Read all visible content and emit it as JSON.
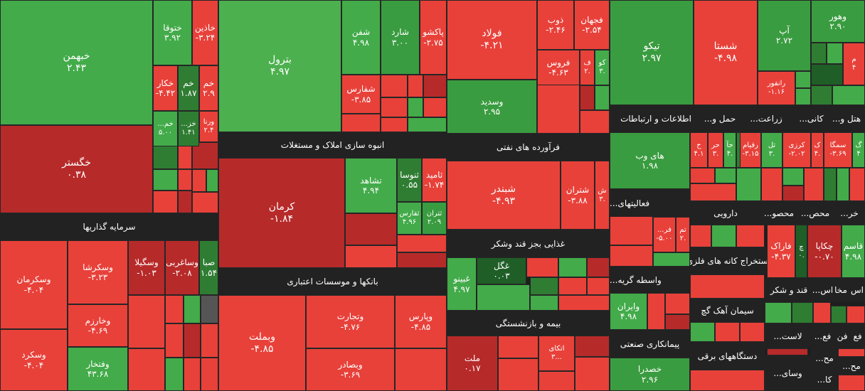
{
  "colors": {
    "red": "#e8413a",
    "red_dark": "#b72a2a",
    "green": "#43ab4a",
    "green_dark": "#2f7d32",
    "green_deep": "#1f5e26",
    "header": "#222222",
    "neutral": "#555555"
  },
  "headers": [
    {
      "label": "سرمایه گذاریها"
    },
    {
      "label": "انبوه سازی املاک و مستغلات"
    },
    {
      "label": "بانکها و موسسات اعتباری"
    },
    {
      "label": "فرآورده های نفتی"
    },
    {
      "label": "غذایی بجز قند وشکر"
    },
    {
      "label": "بیمه و بازنشستگی"
    },
    {
      "label": "اطلاعات و ارتباطات"
    },
    {
      "label": "حمل و..."
    },
    {
      "label": "زراعت..."
    },
    {
      "label": "کانی..."
    },
    {
      "label": "هتل و..."
    },
    {
      "label": "فعالیتهای..."
    },
    {
      "label": "دارویی"
    },
    {
      "label": "محصو..."
    },
    {
      "label": "محص..."
    },
    {
      "label": "خر..."
    },
    {
      "label": "استخراج کانه های فلزی"
    },
    {
      "label": "واسطه گریه..."
    },
    {
      "label": "قند و شکر"
    },
    {
      "label": "اس..."
    },
    {
      "label": "مخا"
    },
    {
      "label": "اس"
    },
    {
      "label": "سیمان آهک گچ"
    },
    {
      "label": "پیمانکاری صنعتی"
    },
    {
      "label": "دستگاههای برقی"
    },
    {
      "label": "لاست..."
    },
    {
      "label": "فع..."
    },
    {
      "label": "فن"
    },
    {
      "label": "فع"
    },
    {
      "label": "مح..."
    },
    {
      "label": "وسای..."
    },
    {
      "label": "کا..."
    },
    {
      "label": "مح..."
    }
  ],
  "tiles": [
    {
      "sym": "خبهمن",
      "chg": "۲.۴۳"
    },
    {
      "sym": "خگستر",
      "chg": "۰.۳۸"
    },
    {
      "sym": "ختوقا",
      "chg": "۳.۹۲"
    },
    {
      "sym": "خاذین",
      "chg": "-۳.۲۴"
    },
    {
      "sym": "خکار",
      "chg": "-۴.۴۲"
    },
    {
      "sym": "خم",
      "chg": "۱.۸۷"
    },
    {
      "sym": "خم",
      "chg": "۲.۹"
    },
    {
      "sym": "خم...",
      "chg": "۵.۰۰"
    },
    {
      "sym": "خز...",
      "chg": "۱.۴۱"
    },
    {
      "sym": "ورنا",
      "chg": "۲.۴"
    },
    {
      "sym": "بترول",
      "chg": "۴.۹۷"
    },
    {
      "sym": "شفن",
      "chg": "۴.۹۸"
    },
    {
      "sym": "شارد",
      "chg": "۳.۰۰"
    },
    {
      "sym": "پاکشو",
      "chg": "-۲.۷۵"
    },
    {
      "sym": "شفارس",
      "chg": "-۳.۸۵"
    },
    {
      "sym": "فولاد",
      "chg": "-۴.۲۱"
    },
    {
      "sym": "ذوب",
      "chg": "-۲.۴۶"
    },
    {
      "sym": "فجهان",
      "chg": "-۲.۵۴"
    },
    {
      "sym": "فروس",
      "chg": "-۴.۶۳"
    },
    {
      "sym": "ف",
      "chg": "۲."
    },
    {
      "sym": "کو",
      "chg": "۳."
    },
    {
      "sym": "وسدید",
      "chg": "۲.۹۵"
    },
    {
      "sym": "تیکو",
      "chg": "۲.۹۷"
    },
    {
      "sym": "شستا",
      "chg": "-۴.۹۸"
    },
    {
      "sym": "آپ",
      "chg": "۲.۷۲"
    },
    {
      "sym": "وهور",
      "chg": "۲.۹۰"
    },
    {
      "sym": "م",
      "chg": "۴"
    },
    {
      "sym": "رانفور",
      "chg": "-۱.۱۶"
    },
    {
      "sym": "کرمان",
      "chg": "-۱.۸۴"
    },
    {
      "sym": "تشاهد",
      "chg": "۴.۹۴"
    },
    {
      "sym": "ثنوسا",
      "chg": "۰.۵۵"
    },
    {
      "sym": "ثامید",
      "chg": "-۱.۷۴"
    },
    {
      "sym": "ثفارس",
      "chg": "۴.۹۶"
    },
    {
      "sym": "ثتران",
      "chg": "۲.۰۹"
    },
    {
      "sym": "شبندر",
      "chg": "-۴.۹۳"
    },
    {
      "sym": "شتران",
      "chg": "-۳.۸۸"
    },
    {
      "sym": "ش",
      "chg": "۳."
    },
    {
      "sym": "های وب",
      "chg": "۱.۹۸"
    },
    {
      "sym": "ح",
      "chg": "۴.۱"
    },
    {
      "sym": "حر",
      "chg": "۳."
    },
    {
      "sym": "حآ",
      "chg": "۴."
    },
    {
      "sym": "رفیام",
      "chg": "-۳.۱۵"
    },
    {
      "sym": "تل",
      "chg": "۳."
    },
    {
      "sym": "کرزی",
      "chg": "-۲.۰۲"
    },
    {
      "sym": "ک",
      "chg": "۴."
    },
    {
      "sym": "سمگا",
      "chg": "-۳.۶۹"
    },
    {
      "sym": "گ",
      "chg": "۴"
    },
    {
      "sym": "وسکرمان",
      "chg": "-۴.۰۴"
    },
    {
      "sym": "وسکرشا",
      "chg": "-۳.۲۳"
    },
    {
      "sym": "وسگیلا",
      "chg": "-۱.۰۳"
    },
    {
      "sym": "وساغربی",
      "chg": "-۲.۰۸"
    },
    {
      "sym": "صبا",
      "chg": "۱.۵۴"
    },
    {
      "sym": "وخارزم",
      "chg": "-۴.۶۹"
    },
    {
      "sym": "وسکرد",
      "chg": "-۴.۰۴"
    },
    {
      "sym": "وفتخار",
      "chg": "۴۳.۶۸"
    },
    {
      "sym": "وبملت",
      "chg": "-۴.۸۵"
    },
    {
      "sym": "وتجارت",
      "chg": "-۴.۷۶"
    },
    {
      "sym": "وپارس",
      "chg": "-۴.۸۵"
    },
    {
      "sym": "وبصادر",
      "chg": "-۳.۶۹"
    },
    {
      "sym": "غبینو",
      "chg": "۴.۹۷"
    },
    {
      "sym": "غگل",
      "chg": "۰.۰۳"
    },
    {
      "sym": "ملت",
      "chg": "۰.۱۷"
    },
    {
      "sym": "اتکای",
      "chg": "۳..."
    },
    {
      "sym": "تم",
      "chg": "۲."
    },
    {
      "sym": "فر...",
      "chg": "-۵.۰۰"
    },
    {
      "sym": "وایران",
      "chg": "۴.۹۸"
    },
    {
      "sym": "خصدرا",
      "chg": "۲.۹۶"
    },
    {
      "sym": "فاراک",
      "chg": "-۴.۳۷"
    },
    {
      "sym": "چ",
      "chg": "۰."
    },
    {
      "sym": "چکاپا",
      "chg": "-۰.۷۰"
    },
    {
      "sym": "قاسم",
      "chg": "۴.۹۸"
    }
  ]
}
